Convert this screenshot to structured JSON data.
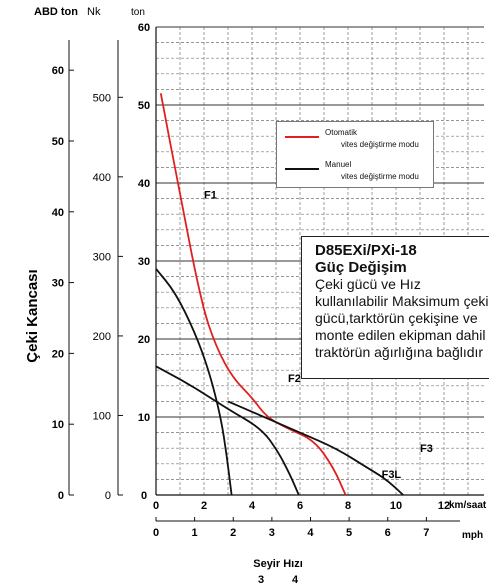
{
  "chart_data": {
    "type": "line",
    "title": "",
    "ylabel": "Çeki Kancası",
    "xlabel": "Seyir Hızı",
    "x_axes": [
      {
        "unit": "km/saat",
        "ticks": [
          0,
          2,
          4,
          6,
          8,
          10,
          12
        ],
        "range": [
          0,
          12
        ]
      },
      {
        "unit": "mph",
        "ticks": [
          0,
          1,
          2,
          3,
          4,
          5,
          6,
          7
        ],
        "range": [
          0,
          7.457
        ]
      }
    ],
    "y_axes": [
      {
        "unit": "ABD ton",
        "ticks": [
          0,
          10,
          20,
          30,
          40,
          50,
          60
        ]
      },
      {
        "unit": "Nk",
        "ticks": [
          0,
          100,
          200,
          300,
          400,
          500
        ]
      },
      {
        "unit": "ton",
        "ticks": [
          0,
          10,
          20,
          30,
          40,
          50,
          60
        ],
        "range": [
          0,
          60
        ]
      }
    ],
    "extra_labels": [
      "3",
      "4"
    ],
    "grid": true,
    "legend": {
      "placement": "top-right",
      "entries": [
        {
          "label": "Otomatik",
          "label2": "vites değiştirme modu",
          "color": "#e02020"
        },
        {
          "label": "Manuel",
          "label2": "vites değiştirme modu",
          "color": "#111111"
        }
      ]
    },
    "series": [
      {
        "name": "Otomatik",
        "color": "#e02020",
        "x": [
          0.2,
          1.0,
          1.9,
          2.5,
          3.2,
          4.0,
          4.6,
          5.5,
          6.6,
          7.4,
          7.9
        ],
        "y": [
          51.5,
          38.5,
          24.5,
          19.0,
          15.0,
          12.5,
          10.0,
          8.5,
          7.0,
          3.5,
          0
        ]
      },
      {
        "name": "",
        "color": "#111111",
        "x": [
          0,
          0.8,
          1.6,
          2.2,
          2.7,
          2.95,
          3.15
        ],
        "y": [
          29.0,
          26.0,
          21.0,
          16.0,
          10.0,
          5.0,
          0
        ]
      },
      {
        "name": "",
        "color": "#111111",
        "x": [
          0,
          1.5,
          3.0,
          4.4,
          5.1,
          5.6,
          5.95
        ],
        "y": [
          16.5,
          14.0,
          11.0,
          8.5,
          5.5,
          2.5,
          0
        ]
      },
      {
        "name": "",
        "color": "#111111",
        "x": [
          3.0,
          4.5,
          6.0,
          7.5,
          8.8,
          9.6,
          10.3
        ],
        "y": [
          12.0,
          10.0,
          8.0,
          6.0,
          3.5,
          2.0,
          0
        ]
      }
    ],
    "annotations": [
      {
        "text": "F1",
        "x": 2.0,
        "y": 38.0
      },
      {
        "text": "F2",
        "x": 5.5,
        "y": 14.5
      },
      {
        "text": "F3",
        "x": 11.0,
        "y": 5.5
      },
      {
        "text": "F3L",
        "x": 9.4,
        "y": 2.2
      }
    ]
  },
  "infobox": {
    "title1": "D85EXi/PXi-18",
    "title2": "Güç Değişim",
    "line1": "Çeki gücü ve Hız",
    "line2": "kullanılabilir Maksimum çeki",
    "line3": "gücü,tarktörün çekişine ve",
    "line4": "monte edilen ekipman dahil",
    "line5": "traktörün ağırlığına bağlıdır"
  },
  "colors": {
    "automatic": "#e02020",
    "manual": "#111111",
    "grid": "#777777"
  }
}
